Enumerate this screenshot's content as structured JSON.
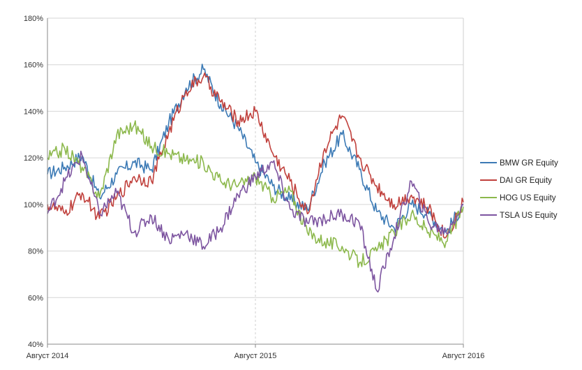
{
  "chart_data": {
    "type": "line",
    "title": "",
    "xlabel": "",
    "ylabel": "",
    "x_ticks": [
      "Август 2014",
      "Август 2015",
      "Август 2016"
    ],
    "y_ticks": [
      "40%",
      "60%",
      "80%",
      "100%",
      "120%",
      "140%",
      "160%",
      "180%"
    ],
    "ylim": [
      40,
      180
    ],
    "y_unit": "%",
    "grid": true,
    "legend_position": "right",
    "x": [
      "2014-08",
      "2014-09",
      "2014-10",
      "2014-11",
      "2014-12",
      "2015-01",
      "2015-02",
      "2015-03",
      "2015-04",
      "2015-05",
      "2015-06",
      "2015-07",
      "2015-08",
      "2015-09",
      "2015-10",
      "2015-11",
      "2015-12",
      "2016-01",
      "2016-02",
      "2016-03",
      "2016-04",
      "2016-05",
      "2016-06",
      "2016-07",
      "2016-08"
    ],
    "series": [
      {
        "name": "BMW GR Equity",
        "color": "#3c7ab5",
        "values": [
          113,
          116,
          121,
          103,
          113,
          118,
          115,
          135,
          150,
          158,
          143,
          133,
          118,
          108,
          102,
          98,
          118,
          130,
          115,
          97,
          90,
          100,
          96,
          88,
          100
        ]
      },
      {
        "name": "DAI GR Equity",
        "color": "#c0403c",
        "values": [
          100,
          96,
          105,
          94,
          103,
          112,
          110,
          131,
          149,
          155,
          144,
          136,
          140,
          122,
          110,
          96,
          124,
          138,
          120,
          108,
          100,
          104,
          98,
          86,
          101
        ]
      },
      {
        "name": "HOG US Equity",
        "color": "#8cb84c",
        "values": [
          120,
          124,
          116,
          103,
          130,
          134,
          125,
          122,
          119,
          118,
          110,
          108,
          112,
          103,
          106,
          88,
          84,
          82,
          75,
          80,
          88,
          96,
          88,
          84,
          99
        ]
      },
      {
        "name": "TSLA US Equity",
        "color": "#7d55a0",
        "values": [
          96,
          110,
          121,
          96,
          105,
          88,
          95,
          85,
          88,
          82,
          90,
          104,
          112,
          118,
          98,
          92,
          94,
          96,
          92,
          63,
          86,
          110,
          92,
          88,
          100
        ]
      }
    ]
  }
}
